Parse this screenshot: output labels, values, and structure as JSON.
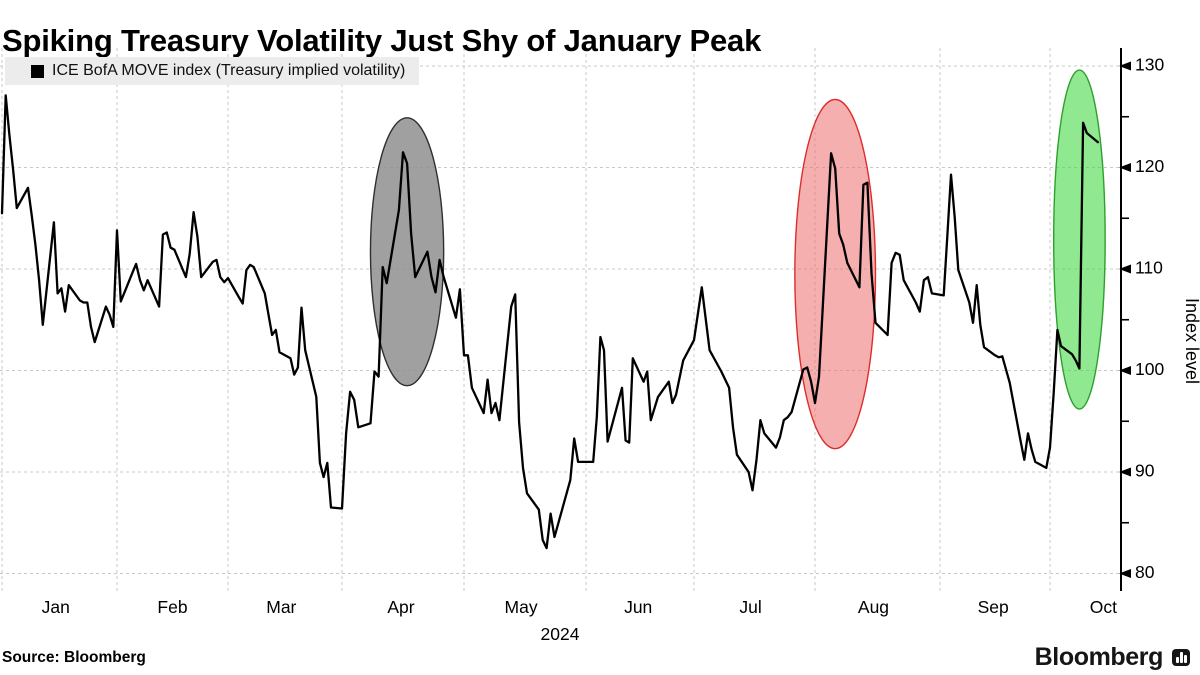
{
  "title": "Spiking Treasury Volatility Just Shy of January Peak",
  "legend": {
    "swatch_color": "#000000",
    "label": "ICE BofA MOVE index (Treasury implied volatility)"
  },
  "source": "Source: Bloomberg",
  "brand": {
    "name": "Bloomberg",
    "icon": "bloomberg-bars-icon"
  },
  "chart_data": {
    "type": "line",
    "title": "Spiking Treasury Volatility Just Shy of January Peak",
    "series_name": "ICE BofA MOVE index (Treasury implied volatility)",
    "line_color": "#000000",
    "ylabel": "Index level",
    "xlabel": "",
    "year_label": "2024",
    "ylim": [
      78,
      132
    ],
    "yticks": [
      80,
      90,
      100,
      110,
      120,
      130
    ],
    "yticks_minor": [
      85,
      95,
      105,
      115,
      125
    ],
    "xticklabels": [
      "Jan",
      "Feb",
      "Mar",
      "Apr",
      "May",
      "Jun",
      "Jul",
      "Aug",
      "Sep",
      "Oct"
    ],
    "grid": "dashed-both-axes",
    "grid_color": "#c9c9c9",
    "legend_position": "top-left",
    "points": [
      [
        "01-01",
        115.5
      ],
      [
        "01-02",
        127.1
      ],
      [
        "01-03",
        123.2
      ],
      [
        "01-04",
        119.8
      ],
      [
        "01-05",
        116.0
      ],
      [
        "01-08",
        118.0
      ],
      [
        "01-09",
        115.3
      ],
      [
        "01-10",
        112.4
      ],
      [
        "01-11",
        108.9
      ],
      [
        "01-12",
        104.5
      ],
      [
        "01-15",
        114.6
      ],
      [
        "01-16",
        107.6
      ],
      [
        "01-17",
        108.1
      ],
      [
        "01-18",
        105.8
      ],
      [
        "01-19",
        108.4
      ],
      [
        "01-22",
        106.9
      ],
      [
        "01-23",
        106.7
      ],
      [
        "01-24",
        106.7
      ],
      [
        "01-25",
        104.3
      ],
      [
        "01-26",
        102.8
      ],
      [
        "01-29",
        106.3
      ],
      [
        "01-30",
        105.5
      ],
      [
        "01-31",
        104.3
      ],
      [
        "02-01",
        113.8
      ],
      [
        "02-02",
        106.8
      ],
      [
        "02-05",
        109.6
      ],
      [
        "02-06",
        110.5
      ],
      [
        "02-07",
        108.9
      ],
      [
        "02-08",
        107.9
      ],
      [
        "02-09",
        108.9
      ],
      [
        "02-12",
        106.3
      ],
      [
        "02-13",
        113.4
      ],
      [
        "02-14",
        113.6
      ],
      [
        "02-15",
        112.1
      ],
      [
        "02-16",
        111.9
      ],
      [
        "02-19",
        109.2
      ],
      [
        "02-20",
        111.5
      ],
      [
        "02-21",
        115.6
      ],
      [
        "02-22",
        113.2
      ],
      [
        "02-23",
        109.2
      ],
      [
        "02-26",
        110.7
      ],
      [
        "02-27",
        110.9
      ],
      [
        "02-28",
        109.2
      ],
      [
        "02-29",
        108.7
      ],
      [
        "03-01",
        109.1
      ],
      [
        "03-04",
        107.2
      ],
      [
        "03-05",
        106.6
      ],
      [
        "03-06",
        109.9
      ],
      [
        "03-07",
        110.4
      ],
      [
        "03-08",
        110.2
      ],
      [
        "03-11",
        107.6
      ],
      [
        "03-12",
        105.5
      ],
      [
        "03-13",
        103.5
      ],
      [
        "03-14",
        104.0
      ],
      [
        "03-15",
        101.8
      ],
      [
        "03-18",
        101.2
      ],
      [
        "03-19",
        99.6
      ],
      [
        "03-20",
        100.3
      ],
      [
        "03-21",
        106.2
      ],
      [
        "03-22",
        102.0
      ],
      [
        "03-25",
        97.4
      ],
      [
        "03-26",
        90.9
      ],
      [
        "03-27",
        89.5
      ],
      [
        "03-28",
        90.9
      ],
      [
        "03-29",
        86.5
      ],
      [
        "04-01",
        86.4
      ],
      [
        "04-02",
        93.8
      ],
      [
        "04-03",
        97.9
      ],
      [
        "04-04",
        97.1
      ],
      [
        "04-05",
        94.4
      ],
      [
        "04-08",
        94.8
      ],
      [
        "04-09",
        99.9
      ],
      [
        "04-10",
        99.4
      ],
      [
        "04-11",
        110.2
      ],
      [
        "04-12",
        108.6
      ],
      [
        "04-15",
        115.8
      ],
      [
        "04-16",
        121.5
      ],
      [
        "04-17",
        120.4
      ],
      [
        "04-18",
        113.5
      ],
      [
        "04-19",
        109.2
      ],
      [
        "04-22",
        111.7
      ],
      [
        "04-23",
        109.2
      ],
      [
        "04-24",
        107.7
      ],
      [
        "04-25",
        110.9
      ],
      [
        "04-26",
        109.2
      ],
      [
        "04-29",
        105.2
      ],
      [
        "04-30",
        108.0
      ],
      [
        "05-01",
        101.5
      ],
      [
        "05-02",
        101.5
      ],
      [
        "05-03",
        98.3
      ],
      [
        "05-06",
        95.8
      ],
      [
        "05-07",
        99.1
      ],
      [
        "05-08",
        95.8
      ],
      [
        "05-09",
        96.8
      ],
      [
        "05-10",
        95.1
      ],
      [
        "05-13",
        106.3
      ],
      [
        "05-14",
        107.5
      ],
      [
        "05-15",
        94.9
      ],
      [
        "05-16",
        90.4
      ],
      [
        "05-17",
        87.9
      ],
      [
        "05-20",
        86.3
      ],
      [
        "05-21",
        83.3
      ],
      [
        "05-22",
        82.5
      ],
      [
        "05-23",
        85.9
      ],
      [
        "05-24",
        83.6
      ],
      [
        "05-28",
        89.2
      ],
      [
        "05-29",
        93.3
      ],
      [
        "05-30",
        91.0
      ],
      [
        "05-31",
        91.0
      ],
      [
        "06-03",
        91.0
      ],
      [
        "06-04",
        95.4
      ],
      [
        "06-05",
        103.3
      ],
      [
        "06-06",
        102.0
      ],
      [
        "06-07",
        93.0
      ],
      [
        "06-11",
        98.3
      ],
      [
        "06-12",
        93.1
      ],
      [
        "06-13",
        92.9
      ],
      [
        "06-14",
        101.2
      ],
      [
        "06-17",
        98.9
      ],
      [
        "06-18",
        99.9
      ],
      [
        "06-19",
        95.1
      ],
      [
        "06-21",
        97.4
      ],
      [
        "06-24",
        98.9
      ],
      [
        "06-25",
        96.8
      ],
      [
        "06-26",
        97.6
      ],
      [
        "06-28",
        101.0
      ],
      [
        "07-01",
        103.0
      ],
      [
        "07-03",
        108.2
      ],
      [
        "07-05",
        102.0
      ],
      [
        "07-08",
        99.9
      ],
      [
        "07-09",
        99.1
      ],
      [
        "07-10",
        98.3
      ],
      [
        "07-11",
        94.4
      ],
      [
        "07-12",
        91.7
      ],
      [
        "07-15",
        90.0
      ],
      [
        "07-16",
        88.2
      ],
      [
        "07-17",
        91.2
      ],
      [
        "07-18",
        95.1
      ],
      [
        "07-19",
        93.8
      ],
      [
        "07-22",
        92.4
      ],
      [
        "07-23",
        93.4
      ],
      [
        "07-24",
        95.1
      ],
      [
        "07-25",
        95.4
      ],
      [
        "07-26",
        95.9
      ],
      [
        "07-29",
        100.1
      ],
      [
        "07-30",
        100.3
      ],
      [
        "07-31",
        98.9
      ],
      [
        "08-01",
        96.8
      ],
      [
        "08-02",
        99.4
      ],
      [
        "08-05",
        121.4
      ],
      [
        "08-06",
        119.9
      ],
      [
        "08-07",
        113.5
      ],
      [
        "08-08",
        112.4
      ],
      [
        "08-09",
        110.6
      ],
      [
        "08-12",
        108.2
      ],
      [
        "08-13",
        118.3
      ],
      [
        "08-14",
        118.5
      ],
      [
        "08-15",
        109.6
      ],
      [
        "08-16",
        104.7
      ],
      [
        "08-19",
        103.5
      ],
      [
        "08-20",
        110.6
      ],
      [
        "08-21",
        111.6
      ],
      [
        "08-22",
        111.4
      ],
      [
        "08-23",
        108.9
      ],
      [
        "08-26",
        106.7
      ],
      [
        "08-27",
        105.8
      ],
      [
        "08-28",
        108.9
      ],
      [
        "08-29",
        109.2
      ],
      [
        "08-30",
        107.6
      ],
      [
        "09-02",
        107.4
      ],
      [
        "09-03",
        113.2
      ],
      [
        "09-04",
        119.3
      ],
      [
        "09-05",
        115.1
      ],
      [
        "09-06",
        109.9
      ],
      [
        "09-09",
        106.7
      ],
      [
        "09-10",
        104.7
      ],
      [
        "09-11",
        108.4
      ],
      [
        "09-12",
        104.5
      ],
      [
        "09-13",
        102.3
      ],
      [
        "09-16",
        101.5
      ],
      [
        "09-17",
        101.3
      ],
      [
        "09-18",
        101.4
      ],
      [
        "09-19",
        100.1
      ],
      [
        "09-20",
        98.8
      ],
      [
        "09-23",
        93.0
      ],
      [
        "09-24",
        91.2
      ],
      [
        "09-25",
        93.8
      ],
      [
        "09-26",
        92.2
      ],
      [
        "09-27",
        91.0
      ],
      [
        "09-30",
        90.4
      ],
      [
        "10-01",
        92.4
      ],
      [
        "10-02",
        97.8
      ],
      [
        "10-03",
        104.0
      ],
      [
        "10-04",
        102.4
      ],
      [
        "10-07",
        101.6
      ],
      [
        "10-08",
        101.0
      ],
      [
        "10-09",
        100.2
      ],
      [
        "10-10",
        124.4
      ],
      [
        "10-11",
        123.4
      ],
      [
        "10-14",
        122.5
      ]
    ],
    "annotations": [
      {
        "type": "ellipse",
        "name": "april-spike-highlight",
        "center_date": "04-17",
        "center_value": 111.7,
        "radius_days": 9,
        "radius_points": 13.2,
        "fill": "#8f8f8f",
        "fill_opacity": 0.85,
        "stroke": "#2f2f2f"
      },
      {
        "type": "ellipse",
        "name": "august-spike-highlight",
        "center_date": "08-06",
        "center_value": 109.5,
        "radius_days": 10,
        "radius_points": 17.2,
        "fill": "#ef6d6d",
        "fill_opacity": 0.55,
        "stroke": "#dd2c2c"
      },
      {
        "type": "ellipse",
        "name": "october-spike-highlight",
        "center_date": "10-09",
        "center_value": 112.9,
        "radius_days": 7,
        "radius_points": 16.7,
        "fill": "#46d946",
        "fill_opacity": 0.6,
        "stroke": "#2da02d"
      }
    ]
  }
}
